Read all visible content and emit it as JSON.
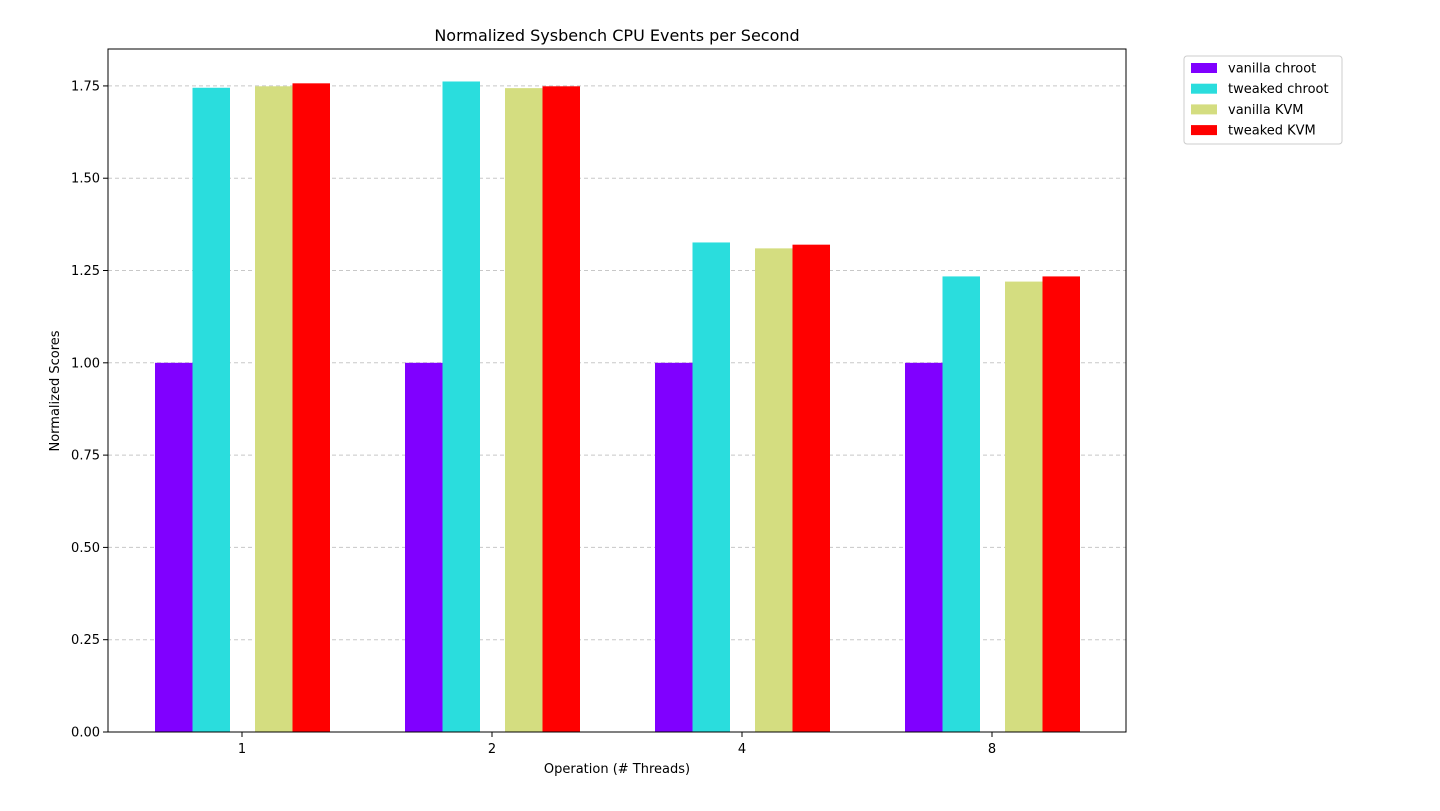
{
  "chart_data": {
    "type": "bar",
    "title": "Normalized Sysbench CPU Events per Second",
    "xlabel": "Operation (# Threads)",
    "ylabel": "Normalized Scores",
    "categories": [
      "1",
      "2",
      "4",
      "8"
    ],
    "series": [
      {
        "name": "vanilla chroot",
        "color": "#8000ff",
        "values": [
          1.0,
          1.0,
          1.0,
          1.0
        ]
      },
      {
        "name": "tweaked chroot",
        "color": "#2adddd",
        "values": [
          1.745,
          1.762,
          1.326,
          1.234
        ]
      },
      {
        "name": "vanilla KVM",
        "color": "#d4dd80",
        "values": [
          1.749,
          1.744,
          1.31,
          1.22
        ]
      },
      {
        "name": "tweaked KVM",
        "color": "#ff0000",
        "values": [
          1.757,
          1.749,
          1.32,
          1.234
        ]
      }
    ],
    "ylim": [
      0,
      1.85
    ],
    "yticks": [
      "0.00",
      "0.25",
      "0.50",
      "0.75",
      "1.00",
      "1.25",
      "1.50",
      "1.75"
    ],
    "grid": "y-dashed",
    "legend_position": "outside-top-right"
  }
}
